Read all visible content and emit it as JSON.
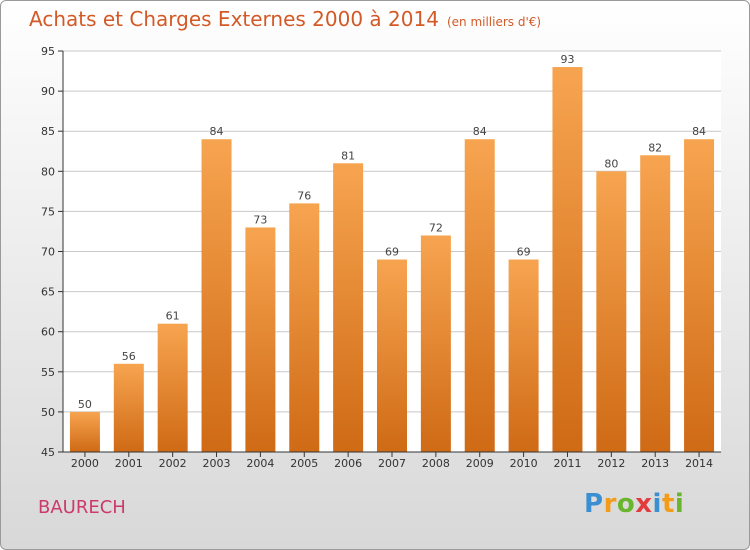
{
  "title": "Achats et Charges Externes 2000 à 2014",
  "unit_note": "(en milliers d'€)",
  "commune": "BAURECH",
  "logo": {
    "text": "Proxiti",
    "letters": [
      {
        "ch": "P",
        "color": "#3a8fd0"
      },
      {
        "ch": "r",
        "color": "#f39c1a"
      },
      {
        "ch": "o",
        "color": "#69b52d"
      },
      {
        "ch": "x",
        "color": "#e23c3c"
      },
      {
        "ch": "i",
        "color": "#3a8fd0"
      },
      {
        "ch": "t",
        "color": "#f39c1a"
      },
      {
        "ch": "i",
        "color": "#69b52d"
      }
    ]
  },
  "chart_data": {
    "type": "bar",
    "categories": [
      "2000",
      "2001",
      "2002",
      "2003",
      "2004",
      "2005",
      "2006",
      "2007",
      "2008",
      "2009",
      "2010",
      "2011",
      "2012",
      "2013",
      "2014"
    ],
    "values": [
      50,
      56,
      61,
      84,
      73,
      76,
      81,
      69,
      72,
      84,
      69,
      93,
      80,
      82,
      84
    ],
    "ylim": [
      45,
      95
    ],
    "yticks": [
      45,
      50,
      55,
      60,
      65,
      70,
      75,
      80,
      85,
      90,
      95
    ],
    "grid": true,
    "bar_color_top": "#f7a450",
    "bar_color_bottom": "#cf6a15",
    "axis_color": "#333333",
    "grid_color": "#c8c8c8"
  }
}
